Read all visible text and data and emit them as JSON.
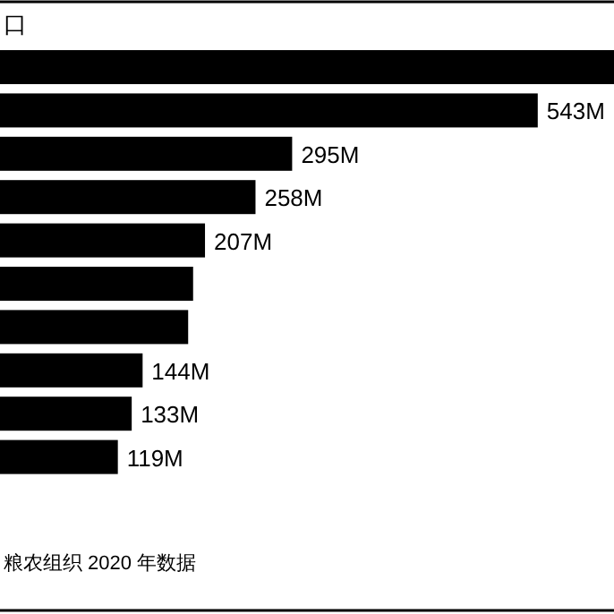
{
  "chart_data": {
    "type": "bar",
    "orientation": "horizontal",
    "title": "口",
    "annotations": [
      "粮农组织 2020 年数据"
    ],
    "categories": [
      null,
      null,
      null,
      null,
      null,
      null,
      null,
      null,
      null,
      null
    ],
    "values": [
      620,
      543,
      295,
      258,
      207,
      195,
      190,
      144,
      133,
      119
    ],
    "value_labels": [
      null,
      "543M",
      "295M",
      "258M",
      "207M",
      null,
      null,
      "144M",
      "133M",
      "119M"
    ],
    "color": "#000000",
    "xlim": [
      0,
      620
    ]
  }
}
